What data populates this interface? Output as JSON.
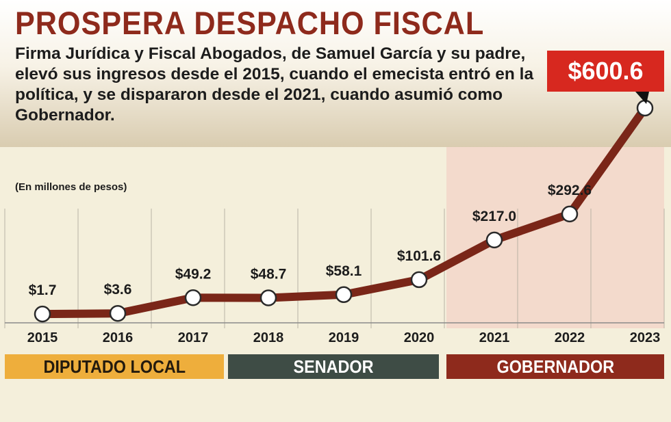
{
  "title": "PROSPERA DESPACHO FISCAL",
  "subtitle": "Firma Jurídica y Fiscal Abogados, de Samuel García y su padre, elevó sus ingresos desde el 2015, cuando el emecista entró en la política, y se dispararon desde el 2021, cuando asumió como Gobernador.",
  "units_label": "(En millones de pesos)",
  "colors": {
    "title": "#8e2a1c",
    "line": "#7a2618",
    "callout": "#d7281f",
    "diputado": "#eeae3c",
    "senador": "#3e4c45",
    "gobernador": "#8e2a1c"
  },
  "periods": {
    "diputado_local": "DIPUTADO LOCAL",
    "senador": "SENADOR",
    "gobernador": "GOBERNADOR"
  },
  "chart_data": {
    "type": "line",
    "title": "PROSPERA DESPACHO FISCAL",
    "ylabel": "(En millones de pesos)",
    "xlabel": "",
    "categories": [
      "2015",
      "2016",
      "2017",
      "2018",
      "2019",
      "2020",
      "2021",
      "2022",
      "2023"
    ],
    "values": [
      1.7,
      3.6,
      49.2,
      48.7,
      58.1,
      101.6,
      217.0,
      292.6,
      600.6
    ],
    "data_labels": [
      "$1.7",
      "$3.6",
      "$49.2",
      "$48.7",
      "$58.1",
      "$101.6",
      "$217.0",
      "$292.6",
      "$600.6"
    ],
    "highlight_label": "$600.6",
    "ylim": [
      0,
      620
    ],
    "grid": "vertical"
  }
}
